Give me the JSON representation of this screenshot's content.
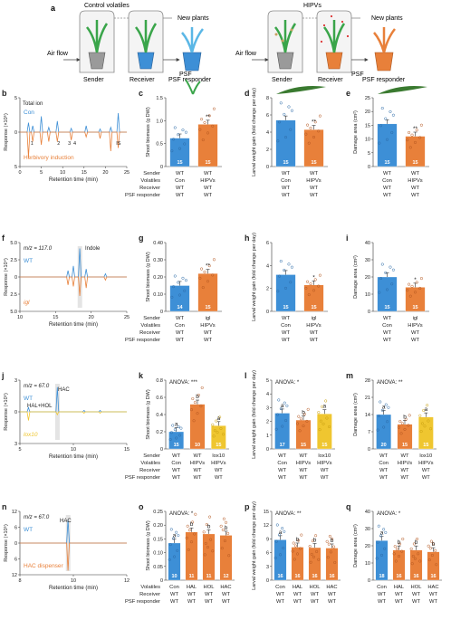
{
  "colors": {
    "blue": "#3d8fd6",
    "orange": "#e8803a",
    "yellow": "#efc630",
    "green": "#3aa54a",
    "grey": "#999999",
    "dark": "#222222"
  },
  "panel_a": {
    "label": "a",
    "header_left": "Control volatiles",
    "header_right": "HIPVs",
    "airflow": "Air flow",
    "sender": "Sender",
    "receiver": "Receiver",
    "psf": "PSF",
    "new_plants": "New plants",
    "psf_responder": "PSF responder"
  },
  "chroms": [
    {
      "label": "b",
      "ylabel": "Response (×10⁶)",
      "xlabel": "Retention time (min)",
      "xticks": [
        "0",
        "5",
        "10",
        "15",
        "20",
        "25"
      ],
      "yticks": [
        "5",
        "0",
        "5"
      ],
      "top_name": "Total ion",
      "top_series": "Con",
      "bottom_series": "Herbivory induction",
      "peaks": [
        "1",
        "2",
        "3",
        "4",
        "IS"
      ]
    },
    {
      "label": "f",
      "mz": "m/z = 117.0",
      "compound": "Indole",
      "ylabel": "Response (×10⁴)",
      "xlabel": "Retention time (min)",
      "xticks": [
        "10",
        "15",
        "20",
        "25"
      ],
      "yticks": [
        "5.0",
        "2.5",
        "0",
        "2.5",
        "5.0"
      ],
      "top_series": "WT",
      "bottom_series": "igl"
    },
    {
      "label": "j",
      "mz": "m/z = 67.0",
      "compound": "HAC",
      "compound2": "HAL+HOL",
      "ylabel": "Response (×10⁵)",
      "xlabel": "Retention time (min)",
      "xticks": [
        "5",
        "10",
        "15"
      ],
      "yticks": [
        "3",
        "0",
        "3"
      ],
      "top_series": "WT",
      "bottom_series": "lox10"
    },
    {
      "label": "n",
      "mz": "m/z = 67.0",
      "compound": "HAC",
      "ylabel": "Response (×10⁵)",
      "xlabel": "Retention time (min)",
      "xticks": [
        "8",
        "10",
        "12"
      ],
      "yticks": [
        "12",
        "6",
        "0",
        "6",
        "12"
      ],
      "top_series": "WT",
      "bottom_series": "HAC dispenser"
    }
  ],
  "chart_data": [
    {
      "panel": "c",
      "type": "bar",
      "ylabel": "Shoot biomass (g DW)",
      "yticks": [
        "0",
        "0.5",
        "1.0",
        "1.5"
      ],
      "ylim": [
        0,
        1.5
      ],
      "values": [
        0.62,
        0.92
      ],
      "n": [
        "15",
        "15"
      ],
      "colors": [
        "blue",
        "orange"
      ],
      "sig": [
        "",
        "**"
      ],
      "rows": [
        [
          "Sender",
          "WT",
          "WT"
        ],
        [
          "Volatiles",
          "Con",
          "HIPVs"
        ],
        [
          "Receiver",
          "WT",
          "WT"
        ],
        [
          "PSF responder",
          "WT",
          "WT"
        ]
      ]
    },
    {
      "panel": "d",
      "type": "bar",
      "ylabel": "Larval weight gain (fold change per day)",
      "yticks": [
        "0",
        "2",
        "4",
        "6",
        "8"
      ],
      "ylim": [
        0,
        8
      ],
      "values": [
        5.4,
        4.3
      ],
      "n": [
        "15",
        "15"
      ],
      "colors": [
        "blue",
        "orange"
      ],
      "sig": [
        "",
        "**"
      ]
    },
    {
      "panel": "e",
      "type": "bar",
      "ylabel": "Damage area (cm²)",
      "yticks": [
        "0",
        "5",
        "10",
        "15",
        "20",
        "25"
      ],
      "ylim": [
        0,
        25
      ],
      "values": [
        15.5,
        11
      ],
      "n": [
        "15",
        "15"
      ],
      "colors": [
        "blue",
        "orange"
      ],
      "sig": [
        "",
        "**"
      ]
    },
    {
      "panel": "g",
      "type": "bar",
      "ylabel": "Shoot biomass (g DW)",
      "yticks": [
        "0",
        "0.10",
        "0.20",
        "0.30",
        "0.40"
      ],
      "ylim": [
        0,
        0.4
      ],
      "values": [
        0.15,
        0.22
      ],
      "n": [
        "14",
        "15"
      ],
      "colors": [
        "blue",
        "orange"
      ],
      "sig": [
        "",
        "**"
      ],
      "rows": [
        [
          "Sender",
          "WT",
          "igl"
        ],
        [
          "Volatiles",
          "Con",
          "HIPVs"
        ],
        [
          "Receiver",
          "WT",
          "WT"
        ],
        [
          "PSF responder",
          "WT",
          "WT"
        ]
      ]
    },
    {
      "panel": "h",
      "type": "bar",
      "ylabel": "Larval weight gain (fold change per day)",
      "yticks": [
        "0",
        "2",
        "4",
        "6"
      ],
      "ylim": [
        0,
        6
      ],
      "values": [
        3.2,
        2.3
      ],
      "n": [
        "15",
        "15"
      ],
      "colors": [
        "blue",
        "orange"
      ],
      "sig": [
        "",
        "*"
      ]
    },
    {
      "panel": "i",
      "type": "bar",
      "ylabel": "Damage area (cm²)",
      "yticks": [
        "0",
        "10",
        "20",
        "30",
        "40"
      ],
      "ylim": [
        0,
        40
      ],
      "values": [
        20,
        14
      ],
      "n": [
        "15",
        "15"
      ],
      "colors": [
        "blue",
        "orange"
      ],
      "sig": [
        "",
        "*"
      ]
    },
    {
      "panel": "k",
      "type": "bar",
      "anova": "ANOVA: ***",
      "ylabel": "Shoot biomass (g DW)",
      "yticks": [
        "0",
        "0.2",
        "0.4",
        "0.6",
        "0.8"
      ],
      "ylim": [
        0,
        0.8
      ],
      "values": [
        0.2,
        0.52,
        0.27
      ],
      "n": [
        "15",
        "10",
        "15"
      ],
      "colors": [
        "blue",
        "orange",
        "yellow"
      ],
      "sig": [
        "a",
        "b",
        "a"
      ],
      "rows": [
        [
          "Sender",
          "WT",
          "WT",
          "lox10"
        ],
        [
          "Volatiles",
          "Con",
          "HIPVs",
          "HIPVs"
        ],
        [
          "Receiver",
          "WT",
          "WT",
          "WT"
        ],
        [
          "PSF responder",
          "WT",
          "WT",
          "WT"
        ]
      ]
    },
    {
      "panel": "l",
      "type": "bar",
      "anova": "ANOVA: *",
      "ylabel": "Larval weight gain (fold change per day)",
      "yticks": [
        "0",
        "1",
        "2",
        "3",
        "4",
        "5"
      ],
      "ylim": [
        0,
        5
      ],
      "values": [
        2.6,
        2.1,
        2.55
      ],
      "n": [
        "17",
        "15",
        "15"
      ],
      "colors": [
        "blue",
        "orange",
        "yellow"
      ],
      "sig": [
        "a",
        "b",
        "a"
      ]
    },
    {
      "panel": "m",
      "type": "bar",
      "anova": "ANOVA: **",
      "ylabel": "Damage area (cm²)",
      "yticks": [
        "0",
        "7",
        "14",
        "21",
        "28"
      ],
      "ylim": [
        0,
        28
      ],
      "values": [
        14,
        10,
        13
      ],
      "n": [
        "20",
        "15",
        "15"
      ],
      "colors": [
        "blue",
        "orange",
        "yellow"
      ],
      "sig": [
        "a",
        "b",
        "a"
      ]
    },
    {
      "panel": "o",
      "type": "bar",
      "anova": "ANOVA: *",
      "ylabel": "Shoot biomass (g DW)",
      "yticks": [
        "0",
        "0.05",
        "0.10",
        "0.15",
        "0.20",
        "0.25"
      ],
      "ylim": [
        0,
        0.25
      ],
      "values": [
        0.135,
        0.175,
        0.168,
        0.163
      ],
      "n": [
        "10",
        "11",
        "11",
        "12"
      ],
      "colors": [
        "blue",
        "orange",
        "orange",
        "orange"
      ],
      "sig": [
        "a",
        "b",
        "b",
        "b"
      ],
      "rows": [
        [
          "Volatiles",
          "Con",
          "HAL",
          "HOL",
          "HAC"
        ],
        [
          "Receiver",
          "WT",
          "WT",
          "WT",
          "WT"
        ],
        [
          "PSF responder",
          "WT",
          "WT",
          "WT",
          "WT"
        ]
      ]
    },
    {
      "panel": "p",
      "type": "bar",
      "anova": "ANOVA: **",
      "ylabel": "Larval weight gain (fold change per day)",
      "yticks": [
        "0",
        "3",
        "6",
        "9",
        "12",
        "15"
      ],
      "ylim": [
        0,
        15
      ],
      "values": [
        8.8,
        7.2,
        7.1,
        7.0
      ],
      "n": [
        "16",
        "16",
        "16",
        "16"
      ],
      "colors": [
        "blue",
        "orange",
        "orange",
        "orange"
      ],
      "sig": [
        "a",
        "b",
        "b",
        "b"
      ]
    },
    {
      "panel": "q",
      "type": "bar",
      "anova": "ANOVA: *",
      "ylabel": "Damage area (cm²)",
      "yticks": [
        "0",
        "10",
        "20",
        "30",
        "40"
      ],
      "ylim": [
        0,
        40
      ],
      "values": [
        23,
        17.5,
        17.5,
        16.5
      ],
      "n": [
        "18",
        "16",
        "16",
        "16"
      ],
      "colors": [
        "blue",
        "orange",
        "orange",
        "orange"
      ],
      "sig": [
        "a",
        "b",
        "b",
        "b"
      ]
    }
  ]
}
